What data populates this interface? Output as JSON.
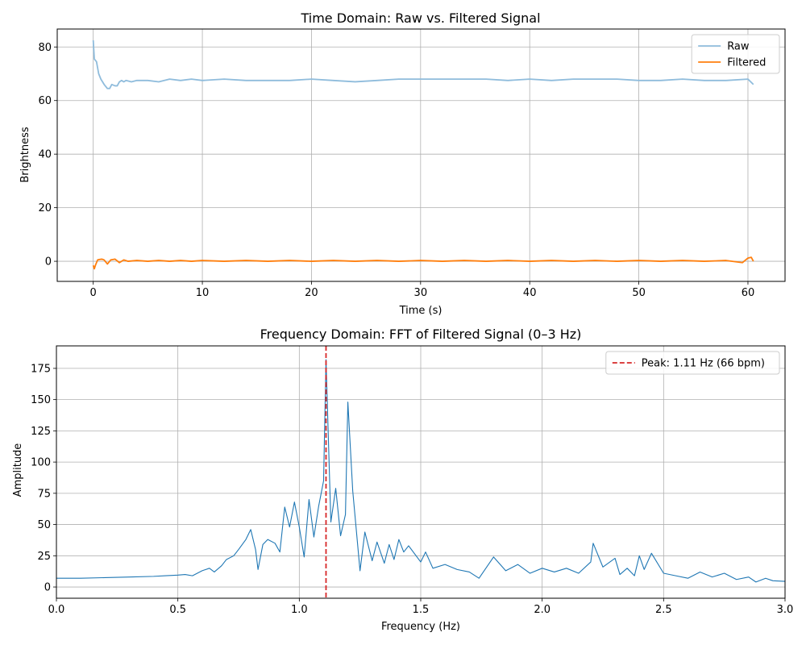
{
  "chart_data": [
    {
      "type": "line",
      "title": "Time Domain: Raw vs. Filtered Signal",
      "xlabel": "Time (s)",
      "ylabel": "Brightness",
      "xlim": [
        -3.3,
        63.4
      ],
      "ylim": [
        -7.5,
        86.7
      ],
      "xticks": [
        0,
        10,
        20,
        30,
        40,
        50,
        60
      ],
      "yticks": [
        0,
        20,
        40,
        60,
        80
      ],
      "grid": true,
      "legend": "top-right",
      "series": [
        {
          "name": "Raw",
          "color": "#8fbcdc",
          "x": [
            0,
            0.1,
            0.3,
            0.5,
            0.7,
            1.0,
            1.3,
            1.5,
            1.7,
            2.0,
            2.2,
            2.4,
            2.6,
            2.8,
            3.0,
            3.5,
            4,
            5,
            6,
            7,
            8,
            9,
            10,
            12,
            14,
            16,
            18,
            20,
            22,
            24,
            26,
            28,
            30,
            32,
            34,
            36,
            38,
            40,
            42,
            44,
            46,
            48,
            50,
            52,
            54,
            56,
            58,
            60,
            60.5
          ],
          "y": [
            82.5,
            75.5,
            74.5,
            70,
            68,
            66,
            64.5,
            64.5,
            66,
            65.5,
            65.5,
            67,
            67.5,
            67,
            67.5,
            67,
            67.5,
            67.5,
            67,
            68,
            67.5,
            68,
            67.5,
            68,
            67.5,
            67.5,
            67.5,
            68,
            67.5,
            67,
            67.5,
            68,
            68,
            68,
            68,
            68,
            67.5,
            68,
            67.5,
            68,
            68,
            68,
            67.5,
            67.5,
            68,
            67.5,
            67.5,
            68,
            66
          ]
        },
        {
          "name": "Filtered",
          "color": "#ff7f0e",
          "x": [
            0,
            0.1,
            0.2,
            0.4,
            0.6,
            0.8,
            1.0,
            1.3,
            1.6,
            2.0,
            2.4,
            2.8,
            3.2,
            4,
            5,
            6,
            7,
            8,
            9,
            10,
            12,
            14,
            16,
            18,
            20,
            22,
            24,
            26,
            28,
            30,
            32,
            34,
            36,
            38,
            40,
            42,
            44,
            46,
            48,
            50,
            52,
            54,
            56,
            58,
            59.5,
            60,
            60.3,
            60.5
          ],
          "y": [
            -1.5,
            -2.8,
            -1.5,
            0.5,
            0.7,
            0.8,
            0.5,
            -1,
            0.5,
            0.8,
            -0.5,
            0.5,
            0,
            0.3,
            0,
            0.3,
            0,
            0.3,
            0,
            0.3,
            0,
            0.3,
            0,
            0.3,
            0,
            0.3,
            0,
            0.3,
            0,
            0.3,
            0,
            0.3,
            0,
            0.3,
            0,
            0.3,
            0,
            0.3,
            0,
            0.3,
            0,
            0.3,
            0,
            0.3,
            -0.5,
            1.2,
            1.5,
            0
          ]
        }
      ]
    },
    {
      "type": "line",
      "title": "Frequency Domain: FFT of Filtered Signal (0–3 Hz)",
      "xlabel": "Frequency (Hz)",
      "ylabel": "Amplitude",
      "xlim": [
        0,
        3
      ],
      "ylim": [
        -9,
        193
      ],
      "xticks": [
        0.0,
        0.5,
        1.0,
        1.5,
        2.0,
        2.5,
        3.0
      ],
      "xtick_labels": [
        "0.0",
        "0.5",
        "1.0",
        "1.5",
        "2.0",
        "2.5",
        "3.0"
      ],
      "yticks": [
        0,
        25,
        50,
        75,
        100,
        125,
        150,
        175
      ],
      "grid": true,
      "legend": "top-right",
      "peak_line": {
        "x": 1.11,
        "label": "Peak: 1.11 Hz (66 bpm)",
        "color": "#d62728"
      },
      "series": [
        {
          "name": "",
          "color": "#1f77b4",
          "x": [
            0,
            0.1,
            0.2,
            0.3,
            0.4,
            0.45,
            0.5,
            0.53,
            0.56,
            0.6,
            0.63,
            0.65,
            0.68,
            0.7,
            0.73,
            0.75,
            0.78,
            0.8,
            0.82,
            0.83,
            0.85,
            0.87,
            0.9,
            0.92,
            0.94,
            0.96,
            0.98,
            1.0,
            1.02,
            1.04,
            1.06,
            1.08,
            1.1,
            1.11,
            1.13,
            1.15,
            1.17,
            1.19,
            1.2,
            1.22,
            1.25,
            1.27,
            1.3,
            1.32,
            1.35,
            1.37,
            1.39,
            1.41,
            1.43,
            1.45,
            1.5,
            1.52,
            1.55,
            1.6,
            1.65,
            1.7,
            1.74,
            1.8,
            1.85,
            1.9,
            1.95,
            2.0,
            2.05,
            2.1,
            2.15,
            2.2,
            2.21,
            2.25,
            2.3,
            2.32,
            2.35,
            2.38,
            2.4,
            2.42,
            2.45,
            2.5,
            2.55,
            2.6,
            2.65,
            2.7,
            2.75,
            2.8,
            2.85,
            2.88,
            2.92,
            2.95,
            3.0
          ],
          "y": [
            7,
            7,
            7.5,
            8,
            8.5,
            9,
            9.5,
            10,
            9,
            13,
            15,
            12,
            17,
            22,
            25,
            30,
            38,
            46,
            30,
            14,
            34,
            38,
            35,
            28,
            64,
            48,
            68,
            48,
            24,
            70,
            40,
            65,
            85,
            182,
            52,
            79,
            41,
            58,
            148,
            77,
            13,
            44,
            21,
            36,
            19,
            34,
            22,
            38,
            28,
            33,
            20,
            28,
            15,
            18,
            14,
            12,
            7,
            24,
            13,
            18,
            11,
            15,
            12,
            15,
            11,
            20,
            35,
            16,
            23,
            10,
            15,
            9,
            25,
            14,
            27,
            11,
            9,
            7,
            12,
            8,
            11,
            6,
            8,
            4,
            7,
            5,
            4.5
          ]
        }
      ]
    }
  ]
}
